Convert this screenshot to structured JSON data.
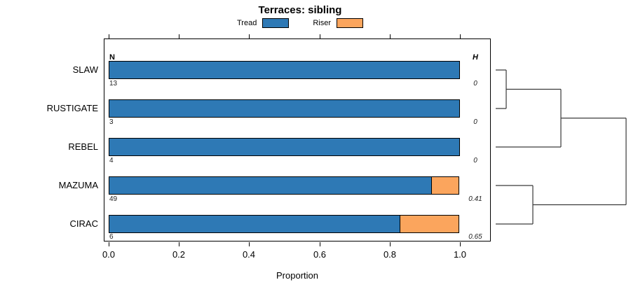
{
  "title": "Terraces: sibling",
  "xlabel": "Proportion",
  "x_ticks": [
    "0.0",
    "0.2",
    "0.4",
    "0.6",
    "0.8",
    "1.0"
  ],
  "columns": {
    "n_header": "N",
    "h_header": "H"
  },
  "legend": [
    {
      "label": "Tread",
      "color": "#2e79b5"
    },
    {
      "label": "Riser",
      "color": "#fba55d"
    }
  ],
  "rows": [
    {
      "label": "SLAW",
      "n": "13",
      "h": "0"
    },
    {
      "label": "RUSTIGATE",
      "n": "3",
      "h": "0"
    },
    {
      "label": "REBEL",
      "n": "4",
      "h": "0"
    },
    {
      "label": "MAZUMA",
      "n": "49",
      "h": "0.41"
    },
    {
      "label": "CIRAC",
      "n": "6",
      "h": "0.65"
    }
  ],
  "chart_data": {
    "type": "bar",
    "orientation": "horizontal",
    "stacked": true,
    "title": "Terraces: sibling",
    "categories": [
      "SLAW",
      "RUSTIGATE",
      "REBEL",
      "MAZUMA",
      "CIRAC"
    ],
    "series": [
      {
        "name": "Tread",
        "values": [
          1.0,
          1.0,
          1.0,
          0.92,
          0.83
        ],
        "color": "#2e79b5"
      },
      {
        "name": "Riser",
        "values": [
          0.0,
          0.0,
          0.0,
          0.08,
          0.17
        ],
        "color": "#fba55d"
      }
    ],
    "sample_sizes": {
      "header": "N",
      "values": [
        13,
        3,
        4,
        49,
        6
      ]
    },
    "heterogeneity": {
      "header": "H",
      "values": [
        0,
        0,
        0,
        0.41,
        0.65
      ]
    },
    "xlabel": "Proportion",
    "xlim": [
      0,
      1
    ],
    "x_ticks": [
      0.0,
      0.2,
      0.4,
      0.6,
      0.8,
      1.0
    ],
    "legend_position": "top",
    "grid": false,
    "dendrogram": {
      "side": "right",
      "merges": [
        [
          "SLAW",
          "RUSTIGATE"
        ],
        [
          [
            "SLAW",
            "RUSTIGATE"
          ],
          "REBEL"
        ],
        [
          "MAZUMA",
          "CIRAC"
        ],
        [
          [
            "SLAW",
            "RUSTIGATE",
            "REBEL"
          ],
          [
            "MAZUMA",
            "CIRAC"
          ]
        ]
      ]
    }
  }
}
